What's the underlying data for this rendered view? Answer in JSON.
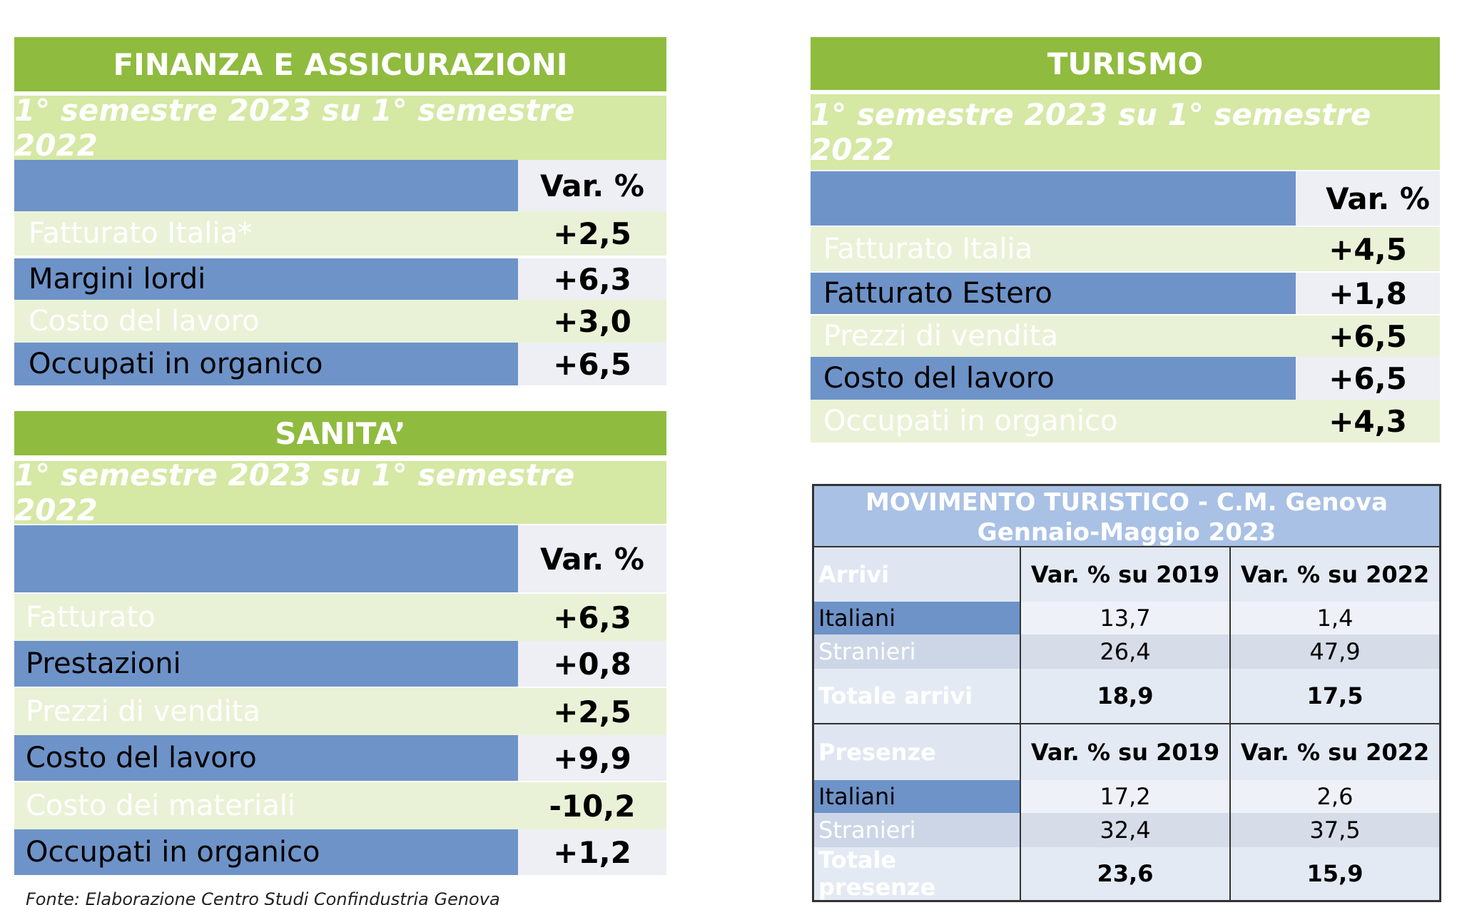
{
  "finanza": {
    "title": "FINANZA E ASSICURAZIONI",
    "subtitle": "1° semestre 2023 su 1° semestre 2022",
    "col_header": "Var. %",
    "rows": [
      {
        "label": "Fatturato Italia*",
        "value": "+2,5"
      },
      {
        "label": "Margini lordi",
        "value": "+6,3"
      },
      {
        "label": "Costo del lavoro",
        "value": "+3,0"
      },
      {
        "label": "Occupati in organico",
        "value": "+6,5"
      }
    ]
  },
  "sanita": {
    "title": "SANITA’",
    "subtitle": "1° semestre 2023 su 1° semestre 2022",
    "col_header": "Var. %",
    "rows": [
      {
        "label": "Fatturato",
        "value": "+6,3"
      },
      {
        "label": "Prestazioni",
        "value": "+0,8"
      },
      {
        "label": "Prezzi di vendita",
        "value": "+2,5"
      },
      {
        "label": "Costo del lavoro",
        "value": "+9,9"
      },
      {
        "label": "Costo dei materiali",
        "value": "-10,2"
      },
      {
        "label": "Occupati in organico",
        "value": "+1,2"
      }
    ]
  },
  "turismo": {
    "title": "TURISMO",
    "subtitle": "1° semestre 2023 su 1° semestre 2022",
    "col_header": "Var. %",
    "rows": [
      {
        "label": "Fatturato Italia",
        "value": "+4,5"
      },
      {
        "label": "Fatturato Estero",
        "value": "+1,8"
      },
      {
        "label": "Prezzi di vendita",
        "value": "+6,5"
      },
      {
        "label": "Costo del lavoro",
        "value": "+6,5"
      },
      {
        "label": "Occupati in organico",
        "value": "+4,3"
      }
    ]
  },
  "movimento": {
    "title_line1": "MOVIMENTO TURISTICO - C.M. Genova",
    "title_line2": "Gennaio-Maggio 2023",
    "arrivi": {
      "header": [
        "Arrivi",
        "Var. % su 2019",
        "Var. % su 2022"
      ],
      "rows": [
        [
          "Italiani",
          "13,7",
          "1,4"
        ],
        [
          "Stranieri",
          "26,4",
          "47,9"
        ],
        [
          "Totale arrivi",
          "18,9",
          "17,5"
        ]
      ]
    },
    "presenze": {
      "header": [
        "Presenze",
        "Var. % su 2019",
        "Var. % su 2022"
      ],
      "rows": [
        [
          "Italiani",
          "17,2",
          "2,6"
        ],
        [
          "Stranieri",
          "32,4",
          "37,5"
        ],
        [
          "Totale presenze",
          "23,6",
          "15,9"
        ]
      ]
    }
  },
  "fonte": "Fonte: Elaborazione Centro Studi Confindustria Genova",
  "colors": {
    "header_green": "#8fbb3e",
    "subtitle_green": "#d5e8a4",
    "row_blue": "#6e93c8",
    "row_light_green": "#e9f2d6"
  }
}
